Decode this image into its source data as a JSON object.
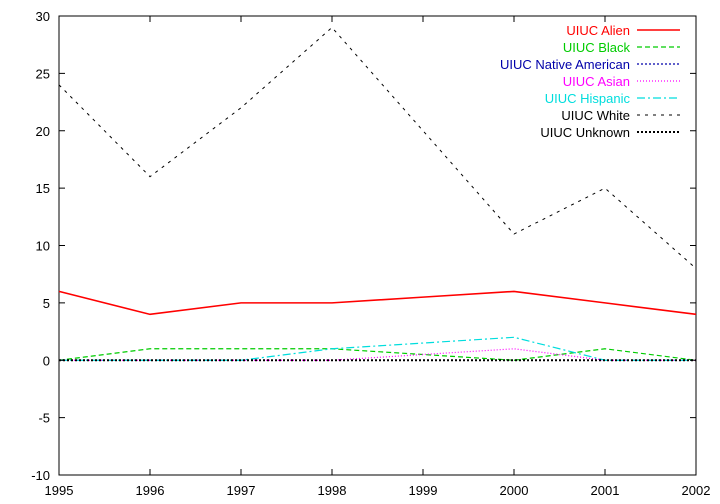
{
  "chart_data": {
    "type": "line",
    "title": "",
    "xlabel": "",
    "ylabel": "",
    "x": [
      1995,
      1996,
      1997,
      1998,
      1999,
      2000,
      2001,
      2002
    ],
    "xlim": [
      1995,
      2002
    ],
    "ylim": [
      -10,
      30
    ],
    "x_ticks": [
      "1995",
      "1996",
      "1997",
      "1998",
      "1999",
      "2000",
      "2001",
      "2002"
    ],
    "y_ticks": [
      "-10",
      "-5",
      "0",
      "5",
      "10",
      "15",
      "20",
      "25",
      "30"
    ],
    "grid": false,
    "legend_position": "top-right",
    "series": [
      {
        "name": "UIUC Alien",
        "color": "#ff0000",
        "dash": "solid",
        "values": [
          6,
          4,
          5,
          5,
          5.5,
          6,
          5,
          4
        ]
      },
      {
        "name": "UIUC Black",
        "color": "#00cc00",
        "dash": "dashed",
        "values": [
          0,
          1,
          1,
          1,
          0.5,
          0,
          1,
          0
        ]
      },
      {
        "name": "UIUC Native American",
        "color": "#0000aa",
        "dash": "dotted",
        "values": [
          0,
          0,
          0,
          0,
          0,
          0,
          0,
          0
        ]
      },
      {
        "name": "UIUC Asian",
        "color": "#ff00ff",
        "dash": "dotted-fine",
        "values": [
          0,
          0,
          0,
          0,
          0.5,
          1,
          0,
          0
        ]
      },
      {
        "name": "UIUC Hispanic",
        "color": "#00dddd",
        "dash": "dash-dot",
        "values": [
          0,
          0,
          0,
          1,
          1.5,
          2,
          0,
          0
        ]
      },
      {
        "name": "UIUC White",
        "color": "#000000",
        "dash": "dashed-sparse",
        "values": [
          24,
          16,
          22,
          29,
          20,
          11,
          15,
          8
        ]
      },
      {
        "name": "UIUC Unknown",
        "color": "#000000",
        "dash": "dotted-bold",
        "values": [
          0,
          0,
          0,
          0,
          0,
          0,
          0,
          0
        ]
      }
    ]
  }
}
